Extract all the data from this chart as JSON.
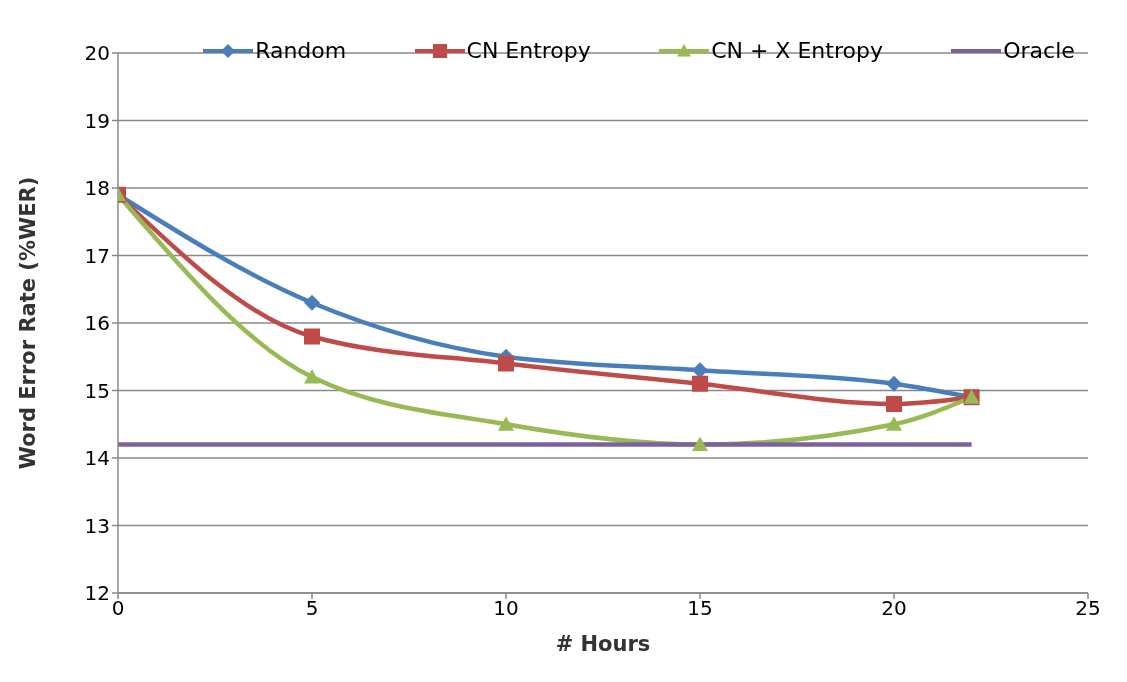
{
  "chart_data": {
    "type": "line",
    "xlabel": "# Hours",
    "ylabel": "Word Error Rate (%WER)",
    "xlim": [
      0,
      25
    ],
    "xticks": [
      0,
      5,
      10,
      15,
      20,
      25
    ],
    "ylim": [
      12,
      20
    ],
    "yticks": [
      12,
      13,
      14,
      15,
      16,
      17,
      18,
      19,
      20
    ],
    "grid": "y",
    "legend": "top",
    "line_style": "solid",
    "series": [
      {
        "name": "Random",
        "color": "#4a7ebb",
        "marker": "diamond",
        "x": [
          0,
          5,
          10,
          15,
          20,
          22
        ],
        "values": [
          17.9,
          16.3,
          15.5,
          15.3,
          15.1,
          14.9
        ]
      },
      {
        "name": "CN Entropy",
        "color": "#be4b48",
        "marker": "square",
        "x": [
          0,
          5,
          10,
          15,
          20,
          22
        ],
        "values": [
          17.9,
          15.8,
          15.4,
          15.1,
          14.8,
          14.9
        ]
      },
      {
        "name": "CN + X Entropy",
        "color": "#98b954",
        "marker": "triangle",
        "x": [
          0,
          5,
          10,
          15,
          20,
          22
        ],
        "values": [
          17.9,
          15.2,
          14.5,
          14.2,
          14.5,
          14.9
        ]
      },
      {
        "name": "Oracle",
        "color": "#7d60a0",
        "marker": "none",
        "x": [
          0,
          22
        ],
        "values": [
          14.2,
          14.2
        ]
      }
    ]
  }
}
